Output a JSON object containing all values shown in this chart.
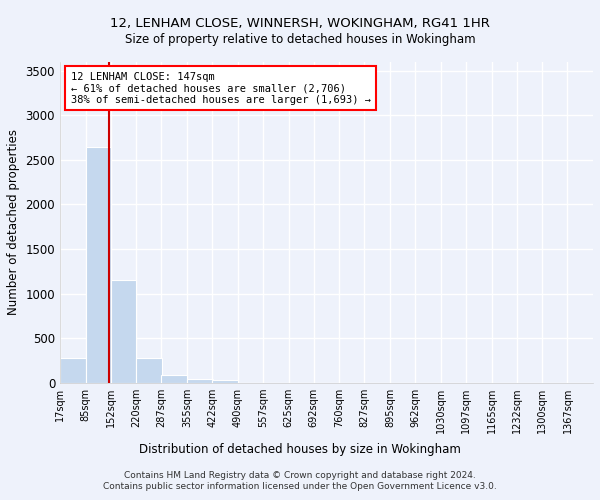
{
  "title1": "12, LENHAM CLOSE, WINNERSH, WOKINGHAM, RG41 1HR",
  "title2": "Size of property relative to detached houses in Wokingham",
  "xlabel": "Distribution of detached houses by size in Wokingham",
  "ylabel": "Number of detached properties",
  "footer1": "Contains HM Land Registry data © Crown copyright and database right 2024.",
  "footer2": "Contains public sector information licensed under the Open Government Licence v3.0.",
  "annotation_title": "12 LENHAM CLOSE: 147sqm",
  "annotation_line1": "← 61% of detached houses are smaller (2,706)",
  "annotation_line2": "38% of semi-detached houses are larger (1,693) →",
  "property_size": 147,
  "bar_color": "#c5d8ee",
  "marker_color": "#cc0000",
  "background_color": "#eef2fb",
  "grid_color": "#ffffff",
  "categories": [
    "17sqm",
    "85sqm",
    "152sqm",
    "220sqm",
    "287sqm",
    "355sqm",
    "422sqm",
    "490sqm",
    "557sqm",
    "625sqm",
    "692sqm",
    "760sqm",
    "827sqm",
    "895sqm",
    "962sqm",
    "1030sqm",
    "1097sqm",
    "1165sqm",
    "1232sqm",
    "1300sqm",
    "1367sqm"
  ],
  "values": [
    280,
    2640,
    1150,
    280,
    90,
    45,
    35,
    0,
    0,
    0,
    0,
    0,
    0,
    0,
    0,
    0,
    0,
    0,
    0,
    0,
    0
  ],
  "bin_edges": [
    17,
    85,
    152,
    220,
    287,
    355,
    422,
    490,
    557,
    625,
    692,
    760,
    827,
    895,
    962,
    1030,
    1097,
    1165,
    1232,
    1300,
    1367
  ],
  "ylim": [
    0,
    3600
  ],
  "yticks": [
    0,
    500,
    1000,
    1500,
    2000,
    2500,
    3000,
    3500
  ]
}
